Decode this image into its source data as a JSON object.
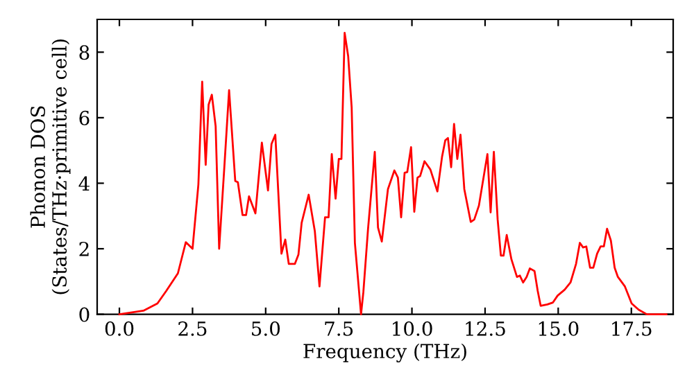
{
  "chart_data": {
    "type": "line",
    "xlabel": "Frequency (THz)",
    "ylabel": "Phonon DOS\n(States/THz·primitive cell)",
    "xlim": [
      -0.76,
      18.93
    ],
    "ylim": [
      0,
      9.0
    ],
    "xticks": [
      {
        "value": 0,
        "label": "0.0"
      },
      {
        "value": 2.5,
        "label": "2.5"
      },
      {
        "value": 5,
        "label": "5.0"
      },
      {
        "value": 7.5,
        "label": "7.5"
      },
      {
        "value": 10,
        "label": "10.0"
      },
      {
        "value": 12.5,
        "label": "12.5"
      },
      {
        "value": 15,
        "label": "15.0"
      },
      {
        "value": 17.5,
        "label": "17.5"
      }
    ],
    "yticks": [
      0,
      2,
      4,
      6,
      8
    ],
    "grid": false,
    "marker": "none",
    "line_style": "solid",
    "x": [
      0,
      0.82,
      1.3,
      1.6,
      2.0,
      2.27,
      2.5,
      2.7,
      2.83,
      2.95,
      3.05,
      3.16,
      3.29,
      3.41,
      3.59,
      3.75,
      3.96,
      4.05,
      4.21,
      4.33,
      4.43,
      4.65,
      4.87,
      5.08,
      5.2,
      5.33,
      5.54,
      5.67,
      5.79,
      6.0,
      6.12,
      6.23,
      6.47,
      6.68,
      6.84,
      7.03,
      7.15,
      7.26,
      7.39,
      7.5,
      7.59,
      7.7,
      7.82,
      7.94,
      8.05,
      8.26,
      8.34,
      8.5,
      8.73,
      8.84,
      8.97,
      9.18,
      9.4,
      9.52,
      9.63,
      9.75,
      9.84,
      9.97,
      10.08,
      10.19,
      10.28,
      10.43,
      10.63,
      10.87,
      11.03,
      11.14,
      11.23,
      11.34,
      11.44,
      11.55,
      11.66,
      11.79,
      12.01,
      12.13,
      12.29,
      12.58,
      12.69,
      12.8,
      12.93,
      13.04,
      13.13,
      13.24,
      13.4,
      13.59,
      13.69,
      13.8,
      13.92,
      14.03,
      14.19,
      14.3,
      14.4,
      14.63,
      14.82,
      14.98,
      15.22,
      15.42,
      15.61,
      15.74,
      15.85,
      15.96,
      16.09,
      16.2,
      16.33,
      16.45,
      16.56,
      16.67,
      16.8,
      16.93,
      17.04,
      17.28,
      17.51,
      17.75,
      18.03,
      18.7
    ],
    "series": [
      {
        "color": "#ff0000",
        "values": [
          0,
          0.11,
          0.33,
          0.71,
          1.25,
          2.2,
          2.0,
          3.96,
          7.1,
          4.56,
          6.4,
          6.7,
          5.74,
          2.0,
          4.53,
          6.84,
          4.07,
          4.03,
          3.03,
          3.03,
          3.6,
          3.08,
          5.24,
          3.78,
          5.2,
          5.48,
          1.85,
          2.28,
          1.54,
          1.54,
          1.82,
          2.79,
          3.65,
          2.54,
          0.85,
          2.96,
          2.96,
          4.89,
          3.53,
          4.74,
          4.74,
          8.59,
          7.88,
          6.31,
          2.18,
          0,
          0.68,
          2.61,
          4.96,
          2.65,
          2.22,
          3.82,
          4.39,
          4.17,
          2.96,
          4.32,
          4.34,
          5.1,
          3.13,
          4.17,
          4.22,
          4.67,
          4.42,
          3.75,
          4.81,
          5.31,
          5.38,
          4.49,
          5.81,
          4.74,
          5.48,
          3.82,
          2.82,
          2.89,
          3.32,
          4.89,
          3.11,
          4.96,
          2.89,
          1.79,
          1.79,
          2.42,
          1.68,
          1.14,
          1.18,
          0.97,
          1.14,
          1.4,
          1.32,
          0.71,
          0.26,
          0.3,
          0.36,
          0.57,
          0.75,
          0.97,
          1.54,
          2.18,
          2.04,
          2.07,
          1.42,
          1.42,
          1.85,
          2.07,
          2.07,
          2.61,
          2.25,
          1.42,
          1.14,
          0.85,
          0.33,
          0.14,
          0,
          0
        ]
      }
    ]
  }
}
